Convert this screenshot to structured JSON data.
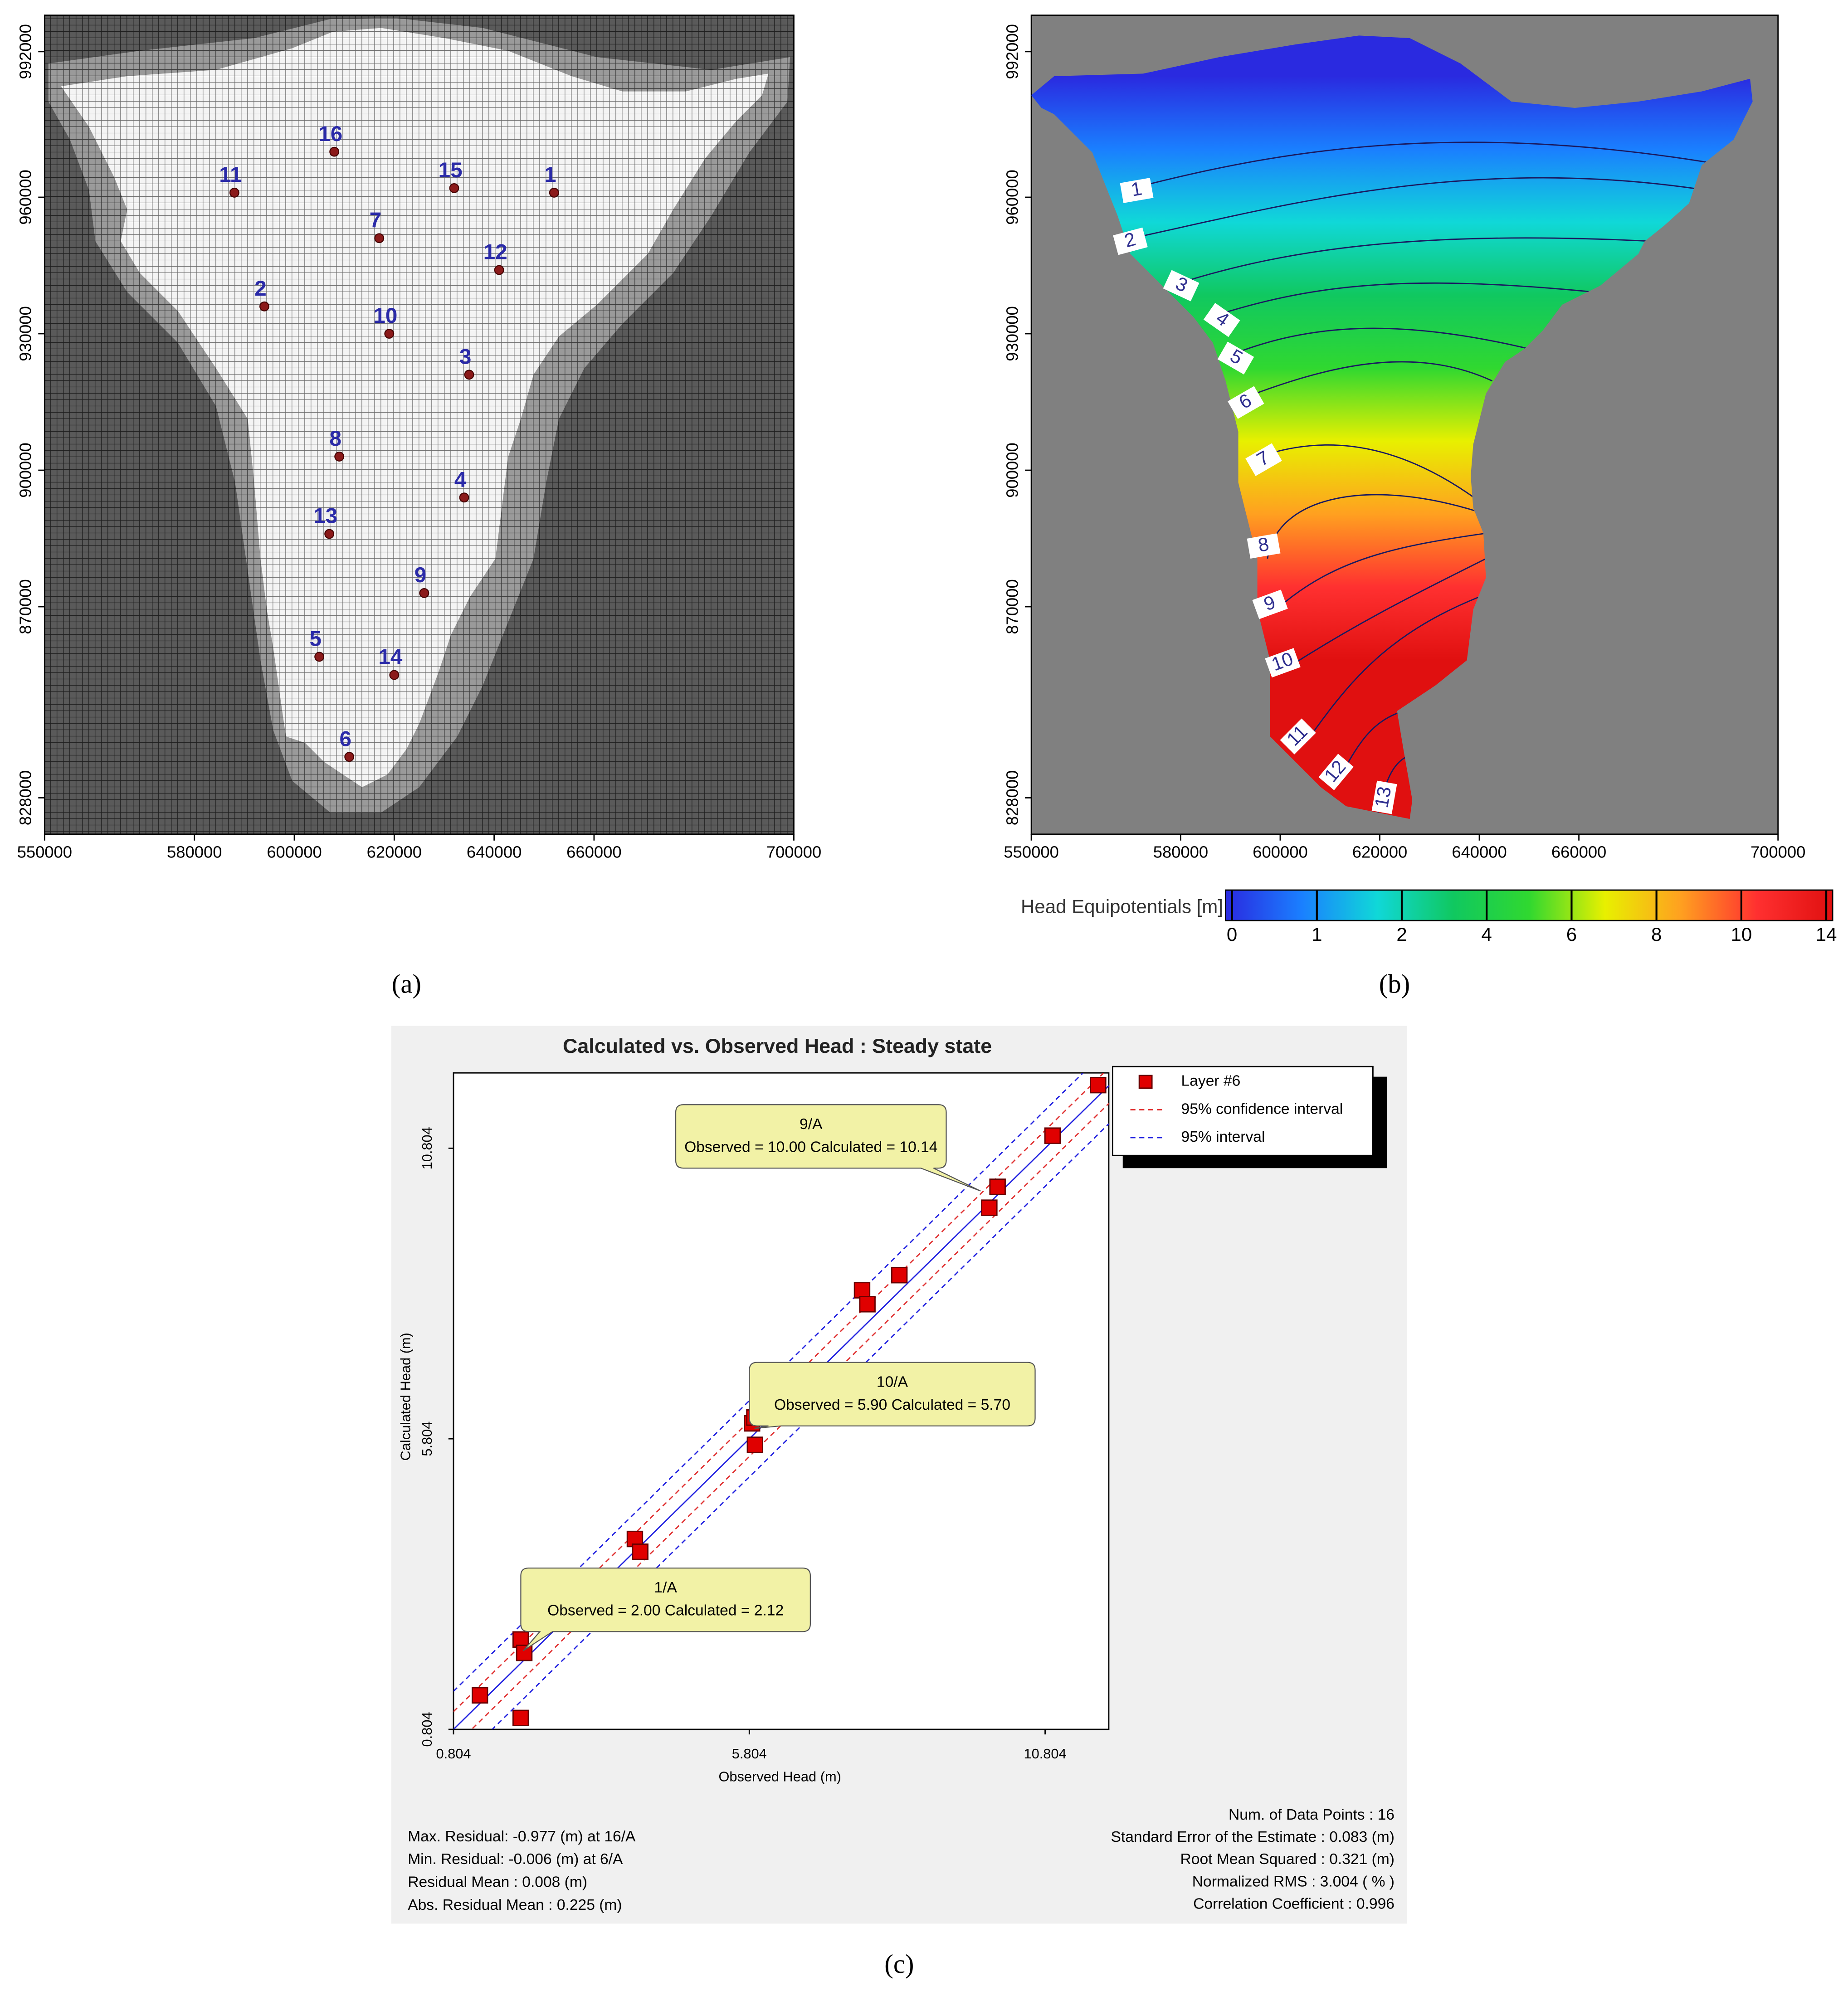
{
  "chart_data": [
    {
      "type": "grid-map",
      "panel_label": "(a)",
      "xlim": [
        550000,
        700000
      ],
      "ylim": [
        820000,
        1000000
      ],
      "xticks": [
        550000,
        580000,
        600000,
        620000,
        640000,
        660000,
        700000
      ],
      "yticks": [
        828000,
        870000,
        900000,
        930000,
        960000,
        992000
      ],
      "well_color": "#8b1a1a",
      "label_color": "#2a2aa8",
      "wells": [
        {
          "label": "16",
          "x": 608000,
          "y": 970000
        },
        {
          "label": "11",
          "x": 588000,
          "y": 961000
        },
        {
          "label": "15",
          "x": 632000,
          "y": 962000
        },
        {
          "label": "1",
          "x": 652000,
          "y": 961000
        },
        {
          "label": "7",
          "x": 617000,
          "y": 951000
        },
        {
          "label": "12",
          "x": 641000,
          "y": 944000
        },
        {
          "label": "2",
          "x": 594000,
          "y": 936000
        },
        {
          "label": "10",
          "x": 619000,
          "y": 930000
        },
        {
          "label": "3",
          "x": 635000,
          "y": 921000
        },
        {
          "label": "8",
          "x": 609000,
          "y": 903000
        },
        {
          "label": "4",
          "x": 634000,
          "y": 894000
        },
        {
          "label": "13",
          "x": 607000,
          "y": 886000
        },
        {
          "label": "9",
          "x": 626000,
          "y": 873000
        },
        {
          "label": "5",
          "x": 605000,
          "y": 859000
        },
        {
          "label": "14",
          "x": 620000,
          "y": 855000
        },
        {
          "label": "6",
          "x": 611000,
          "y": 837000
        }
      ]
    },
    {
      "type": "contour-map",
      "panel_label": "(b)",
      "xlim": [
        550000,
        700000
      ],
      "ylim": [
        820000,
        1000000
      ],
      "xticks": [
        550000,
        580000,
        600000,
        620000,
        640000,
        660000,
        700000
      ],
      "yticks": [
        828000,
        870000,
        900000,
        930000,
        960000,
        992000
      ],
      "contour_levels": [
        1,
        2,
        3,
        4,
        5,
        6,
        7,
        8,
        9,
        10,
        11,
        12,
        13
      ],
      "colorbar": {
        "title": "Head Equipotentials [m]",
        "ticks": [
          0,
          1,
          2,
          4,
          6,
          8,
          10,
          14
        ],
        "colors": [
          "#2a2ae0",
          "#1a7fff",
          "#10d8d8",
          "#10c860",
          "#30d830",
          "#e8f000",
          "#ffa020",
          "#ff3030",
          "#e01010"
        ]
      }
    },
    {
      "type": "scatter",
      "panel_label": "(c)",
      "title": "Calculated vs. Observed Head : Steady state",
      "x_label": "Observed Head (m)",
      "y_label": "Calculated Head (m)",
      "xlim": [
        0.804,
        11.88
      ],
      "ylim": [
        0.804,
        12.1
      ],
      "xticks": [
        0.804,
        5.804,
        10.804
      ],
      "yticks": [
        0.804,
        5.804,
        10.804
      ],
      "series": [
        {
          "name": "Layer #6",
          "color": "#e00000",
          "x": [
            1.25,
            1.94,
            2.0,
            1.94,
            3.87,
            3.96,
            5.9,
            5.85,
            5.89,
            7.71,
            7.8,
            8.34,
            10.0,
            9.86,
            10.93,
            11.7
          ],
          "values": [
            1.39,
            2.35,
            2.12,
            1.0,
            4.08,
            3.86,
            5.7,
            6.07,
            6.17,
            8.36,
            8.12,
            8.62,
            10.14,
            9.78,
            11.02,
            11.89
          ]
        },
        {
          "name": "95% confidence interval",
          "color": "#e03030"
        },
        {
          "name": "95% interval",
          "color": "#2020e0"
        }
      ],
      "annotations": [
        {
          "label": "9/A",
          "text": "Observed = 10.00 Calculated = 10.14"
        },
        {
          "label": "10/A",
          "text": "Observed = 5.90 Calculated = 5.70"
        },
        {
          "label": "1/A",
          "text": "Observed = 2.00 Calculated = 2.12"
        }
      ],
      "stats_left": [
        "Max. Residual: -0.977 (m) at 16/A",
        "Min. Residual: -0.006 (m) at 6/A",
        "Residual Mean : 0.008 (m)",
        "Abs. Residual Mean : 0.225 (m)"
      ],
      "stats_right": [
        "Num. of Data Points : 16",
        "Standard Error of the Estimate : 0.083 (m)",
        "Root Mean Squared : 0.321 (m)",
        "Normalized RMS : 3.004 ( % )",
        "Correlation Coefficient : 0.996"
      ]
    }
  ]
}
